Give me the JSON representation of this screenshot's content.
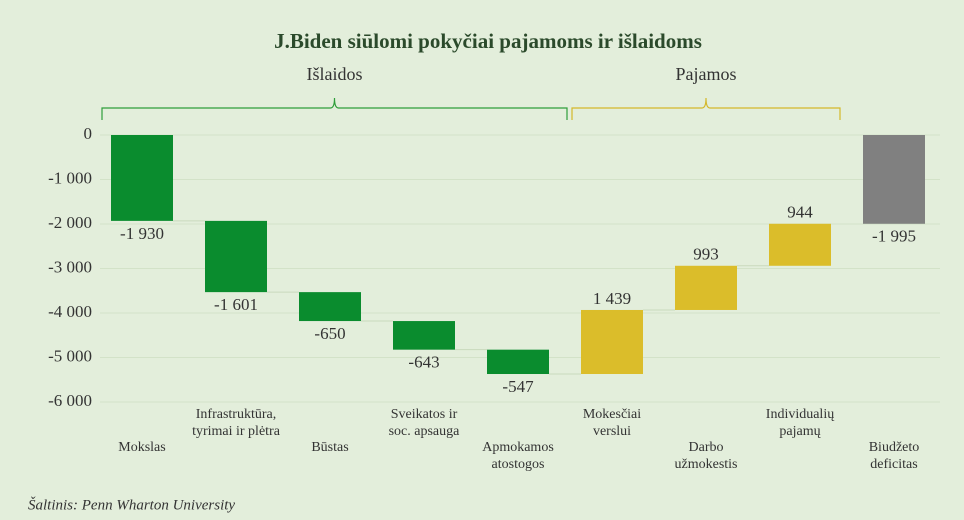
{
  "chart_data": {
    "type": "waterfall",
    "title": "J.Biden siūlomi pokyčiai pajamoms ir išlaidoms",
    "groups": [
      {
        "name": "Išlaidos",
        "color": "#2e9e3a"
      },
      {
        "name": "Pajamos",
        "color": "#d4b82a"
      }
    ],
    "categories": [
      "Mokslas",
      "Infrastruktūra,\ntyrimai ir plėtra",
      "Būstas",
      "Sveikatos ir\nsoc. apsauga",
      "Apmokamos\natostogos",
      "Mokesčiai\nverslui",
      "Darbo\nužmokestis",
      "Individualių\npajamų",
      "Biudžeto\ndeficitas"
    ],
    "values": [
      -1930,
      -1601,
      -650,
      -643,
      -547,
      1439,
      993,
      944,
      -1995
    ],
    "value_labels": [
      "-1 930",
      "-1 601",
      "-650",
      "-643",
      "-547",
      "1 439",
      "993",
      "944",
      "-1 995"
    ],
    "measure": [
      "relative",
      "relative",
      "relative",
      "relative",
      "relative",
      "relative",
      "relative",
      "relative",
      "total"
    ],
    "colors": [
      "#0a8c2e",
      "#0a8c2e",
      "#0a8c2e",
      "#0a8c2e",
      "#0a8c2e",
      "#dbbd2a",
      "#dbbd2a",
      "#dbbd2a",
      "#808080"
    ],
    "ylim": [
      -6000,
      0
    ],
    "yticks": [
      {
        "value": 0,
        "label": "0"
      },
      {
        "value": -1000,
        "label": "-1 000"
      },
      {
        "value": -2000,
        "label": "-2 000"
      },
      {
        "value": -3000,
        "label": "-3 000"
      },
      {
        "value": -4000,
        "label": "-4 000"
      },
      {
        "value": -5000,
        "label": "-5 000"
      },
      {
        "value": -6000,
        "label": "-6 000"
      }
    ],
    "grid": true,
    "source": "Šaltinis: Penn Wharton University"
  }
}
